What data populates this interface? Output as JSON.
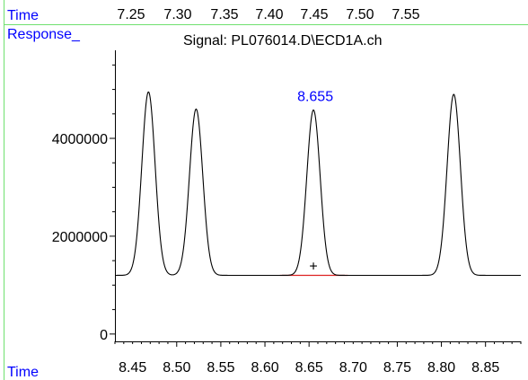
{
  "header": {
    "time_label": "Time",
    "response_label": "Response_",
    "label_color": "#0000ff",
    "divider_color": "#6fe06f"
  },
  "chart_data": {
    "type": "line",
    "title": "Signal: PL076014.D\\ECD1A.ch",
    "xlabel": "Time",
    "ylabel": "Response_",
    "x_top": {
      "ticks": [
        "7.25",
        "7.30",
        "7.35",
        "7.40",
        "7.45",
        "7.50",
        "7.55"
      ],
      "values": [
        7.25,
        7.3,
        7.35,
        7.4,
        7.45,
        7.5,
        7.55
      ]
    },
    "x_bottom": {
      "ticks": [
        "8.45",
        "8.50",
        "8.55",
        "8.60",
        "8.65",
        "8.70",
        "8.75",
        "8.80",
        "8.85"
      ],
      "values": [
        8.45,
        8.5,
        8.55,
        8.6,
        8.65,
        8.7,
        8.75,
        8.8,
        8.85
      ]
    },
    "xlim": [
      8.43,
      8.89
    ],
    "y_ticks": [
      "0",
      "2000000",
      "4000000"
    ],
    "y_values": [
      0,
      2000000,
      4000000
    ],
    "ylim": [
      -150000,
      5800000
    ],
    "baseline": 1200000,
    "peaks": [
      {
        "x": 8.468,
        "height": 4950000,
        "width": 0.0075
      },
      {
        "x": 8.522,
        "height": 4600000,
        "width": 0.0075
      },
      {
        "x": 8.655,
        "height": 4580000,
        "width": 0.0075
      },
      {
        "x": 8.814,
        "height": 4900000,
        "width": 0.0075
      }
    ],
    "annotation": {
      "label": "8.655",
      "x": 8.655,
      "color": "#0000ff"
    },
    "marker": {
      "symbol": "+",
      "x": 8.655,
      "y": 1400000
    },
    "integration_line": {
      "x_start": 8.617,
      "x_end": 8.694,
      "y": 1200000,
      "color": "#dd2222"
    },
    "line_color": "#000000"
  }
}
